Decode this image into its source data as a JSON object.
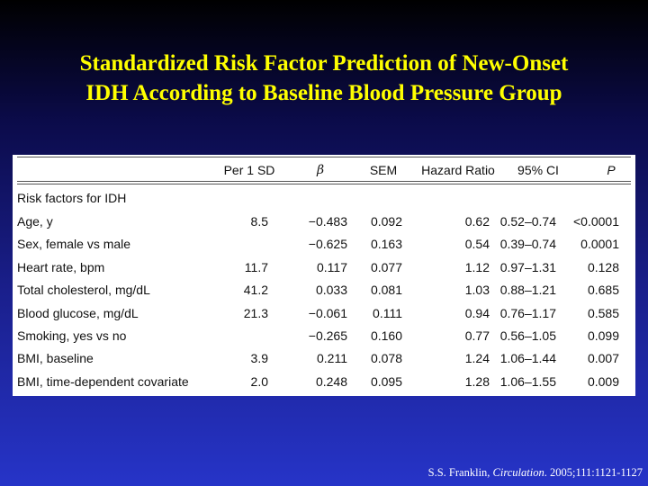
{
  "title": {
    "line1": "Standardized Risk Factor Prediction of New-Onset",
    "line2": "IDH According to Baseline Blood Pressure Group"
  },
  "table": {
    "headers": {
      "per_sd": "Per 1 SD",
      "beta": "β",
      "sem": "SEM",
      "hazard_ratio": "Hazard Ratio",
      "ci": "95% CI",
      "p": "P"
    },
    "section_label": "Risk factors for IDH",
    "rows": [
      {
        "factor": "Age, y",
        "sd": "8.5",
        "beta": "−0.483",
        "sem": "0.092",
        "hr": "0.62",
        "ci": "0.52–0.74",
        "p": "<0.0001"
      },
      {
        "factor": "Sex, female vs male",
        "sd": "",
        "beta": "−0.625",
        "sem": "0.163",
        "hr": "0.54",
        "ci": "0.39–0.74",
        "p": "0.0001"
      },
      {
        "factor": "Heart rate, bpm",
        "sd": "11.7",
        "beta": "0.117",
        "sem": "0.077",
        "hr": "1.12",
        "ci": "0.97–1.31",
        "p": "0.128"
      },
      {
        "factor": "Total cholesterol, mg/dL",
        "sd": "41.2",
        "beta": "0.033",
        "sem": "0.081",
        "hr": "1.03",
        "ci": "0.88–1.21",
        "p": "0.685"
      },
      {
        "factor": "Blood glucose, mg/dL",
        "sd": "21.3",
        "beta": "−0.061",
        "sem": "0.111",
        "hr": "0.94",
        "ci": "0.76–1.17",
        "p": "0.585"
      },
      {
        "factor": "Smoking, yes vs no",
        "sd": "",
        "beta": "−0.265",
        "sem": "0.160",
        "hr": "0.77",
        "ci": "0.56–1.05",
        "p": "0.099"
      },
      {
        "factor": "BMI, baseline",
        "sd": "3.9",
        "beta": "0.211",
        "sem": "0.078",
        "hr": "1.24",
        "ci": "1.06–1.44",
        "p": "0.007"
      },
      {
        "factor": "BMI, time-dependent covariate",
        "sd": "2.0",
        "beta": "0.248",
        "sem": "0.095",
        "hr": "1.28",
        "ci": "1.06–1.55",
        "p": "0.009"
      }
    ]
  },
  "citation": {
    "author": "S.S. Franklin, ",
    "journal": "Circulation",
    "ref": ". 2005;111:1121-1127"
  }
}
